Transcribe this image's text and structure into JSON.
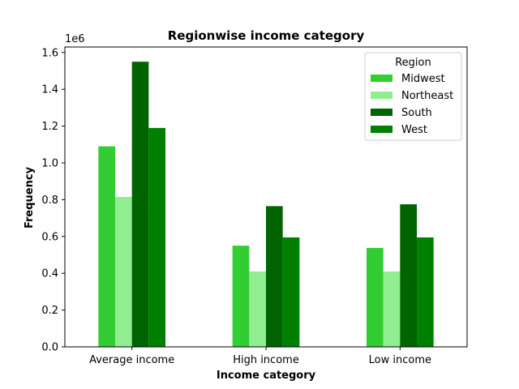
{
  "chart_data": {
    "type": "bar",
    "title": "Regionwise income category",
    "xlabel": "Income category",
    "ylabel": "Frequency",
    "y_offset_label": "1e6",
    "categories": [
      "Average income",
      "High income",
      "Low income"
    ],
    "series": [
      {
        "name": "Midwest",
        "color": "#32cd32",
        "values": [
          1090000,
          550000,
          538000
        ]
      },
      {
        "name": "Northeast",
        "color": "#90ee90",
        "values": [
          815000,
          410000,
          410000
        ]
      },
      {
        "name": "South",
        "color": "#006400",
        "values": [
          1550000,
          765000,
          775000
        ]
      },
      {
        "name": "West",
        "color": "#008000",
        "values": [
          1190000,
          595000,
          595000
        ]
      }
    ],
    "ylim": [
      0,
      1630000
    ],
    "yticks": [
      0,
      200000,
      400000,
      600000,
      800000,
      1000000,
      1200000,
      1400000,
      1600000
    ],
    "ytick_labels": [
      "0.0",
      "0.2",
      "0.4",
      "0.6",
      "0.8",
      "1.0",
      "1.2",
      "1.4",
      "1.6"
    ],
    "grid": false,
    "legend": {
      "title": "Region",
      "placement": "top-right"
    }
  }
}
